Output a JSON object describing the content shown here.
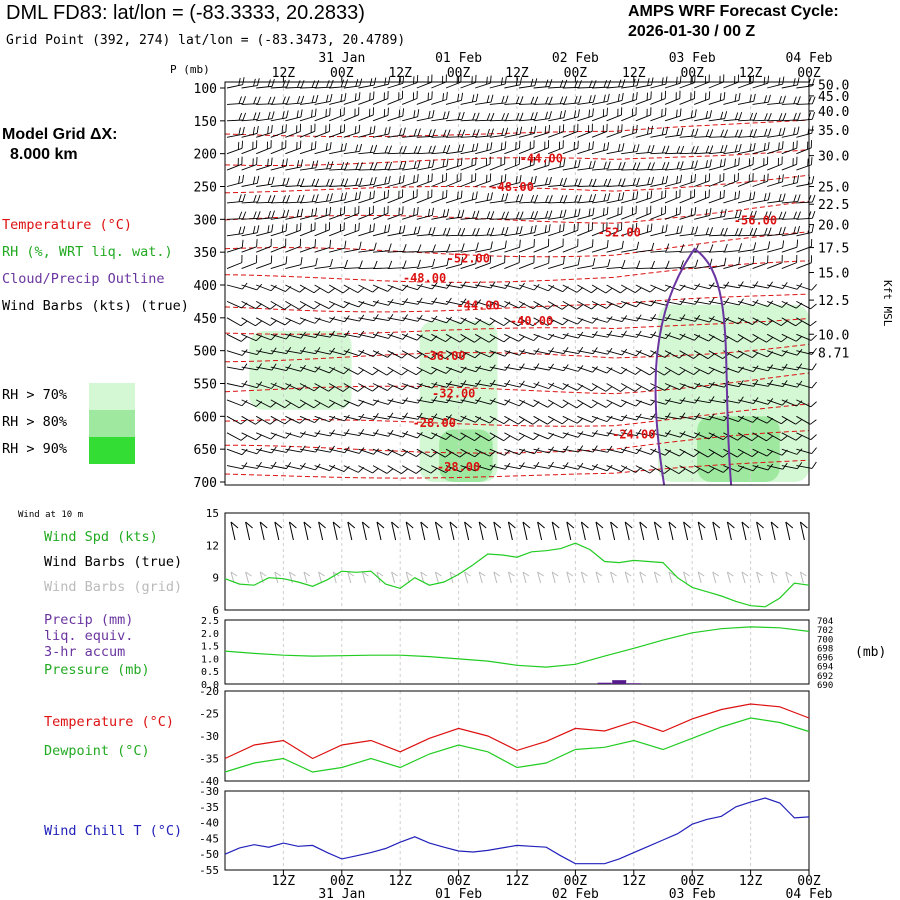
{
  "header": {
    "title": "DML FD83:  lat/lon = (-83.3333, 20.2833)",
    "grid_point": "Grid Point (392, 274) lat/lon = (-83.3473, 20.4789)",
    "cycle_label": "AMPS WRF Forecast Cycle:",
    "cycle_value": "2026-01-30 / 00  Z"
  },
  "side": {
    "grid_dx_label": "Model Grid ΔX:",
    "grid_dx_value": "8.000 km",
    "legend_temperature": "Temperature (°C)",
    "legend_rh": "RH (%, WRT liq. wat.)",
    "legend_cloud": "Cloud/Precip Outline",
    "legend_wind": "Wind Barbs (kts) (true)",
    "rh70": "RH > 70%",
    "rh80": "RH > 80%",
    "rh90": "RH > 90%",
    "wind10m": "Wind at 10 m",
    "wind_spd": "Wind Spd (kts)",
    "wind_barbs_true": "Wind Barbs (true)",
    "wind_barbs_grid": "Wind Barbs (grid)",
    "precip1": "Precip (mm)",
    "precip2": "liq. equiv.",
    "precip3": "3-hr accum",
    "pressure": "Pressure (mb)",
    "temperature": "Temperature (°C)",
    "dewpoint": "Dewpoint (°C)",
    "windchill": "Wind Chill T (°C)"
  },
  "colors": {
    "temperature": "#dd1111",
    "rh70": "#d4f7d4",
    "rh80": "#9fe89f",
    "rh90": "#33dd33",
    "cloud": "#6a35a0",
    "green_line": "#22cc22",
    "windchill": "#2222bb",
    "grid_barbs": "#bbbbbb",
    "precip": "#551a8b"
  },
  "chart_data": {
    "time_axis": {
      "top_ticks": [
        "12Z",
        "00Z",
        "12Z",
        "00Z",
        "12Z",
        "00Z",
        "12Z",
        "00Z",
        "12Z",
        "00Z"
      ],
      "top_dates": [
        {
          "tick": 1,
          "label": "31 Jan"
        },
        {
          "tick": 3,
          "label": "01 Feb"
        },
        {
          "tick": 5,
          "label": "02 Feb"
        },
        {
          "tick": 7,
          "label": "03 Feb"
        },
        {
          "tick": 9,
          "label": "04 Feb"
        }
      ],
      "bottom_ticks": [
        "12Z",
        "00Z",
        "12Z",
        "00Z",
        "12Z",
        "00Z",
        "12Z",
        "00Z",
        "12Z",
        "00Z"
      ],
      "bottom_dates": [
        {
          "tick": 1,
          "label": "31 Jan"
        },
        {
          "tick": 3,
          "label": "01 Feb"
        },
        {
          "tick": 5,
          "label": "02 Feb"
        },
        {
          "tick": 7,
          "label": "03 Feb"
        },
        {
          "tick": 9,
          "label": "04 Feb"
        }
      ],
      "forecast_hours": [
        0,
        120
      ]
    },
    "cross_section": {
      "type": "time-height",
      "ylabel": "P (mb)",
      "pressure_ticks": [
        100,
        150,
        200,
        250,
        300,
        350,
        400,
        450,
        500,
        550,
        600,
        650,
        700
      ],
      "ylim": [
        100,
        700
      ],
      "height_ticks": [
        {
          "label": "50.0",
          "p": 95
        },
        {
          "label": "45.0",
          "p": 112
        },
        {
          "label": "40.0",
          "p": 135
        },
        {
          "label": "35.0",
          "p": 164
        },
        {
          "label": "30.0",
          "p": 203
        },
        {
          "label": "25.0",
          "p": 250
        },
        {
          "label": "22.5",
          "p": 277
        },
        {
          "label": "20.0",
          "p": 308
        },
        {
          "label": "17.5",
          "p": 343
        },
        {
          "label": "15.0",
          "p": 381
        },
        {
          "label": "12.5",
          "p": 423
        },
        {
          "label": "10.0",
          "p": 475
        },
        {
          "label": "8.71",
          "p": 503
        }
      ],
      "height_axis_label": "Kft MSL",
      "temperature_labels": [
        {
          "text": "-44.00",
          "h": 65,
          "p": 207
        },
        {
          "text": "-48.00",
          "h": 59,
          "p": 251
        },
        {
          "text": "-52.00",
          "h": 81,
          "p": 320
        },
        {
          "text": "-56.00",
          "h": 109,
          "p": 302
        },
        {
          "text": "-52.00",
          "h": 50,
          "p": 360
        },
        {
          "text": "-48.00",
          "h": 41,
          "p": 389
        },
        {
          "text": "-44.00",
          "h": 52,
          "p": 431
        },
        {
          "text": "-40.00",
          "h": 63,
          "p": 455
        },
        {
          "text": "-36.00",
          "h": 45,
          "p": 508
        },
        {
          "text": "-32.00",
          "h": 47,
          "p": 565
        },
        {
          "text": "-28.00",
          "h": 43,
          "p": 610
        },
        {
          "text": "-24.00",
          "h": 84,
          "p": 628
        },
        {
          "text": "-28.00",
          "h": 48,
          "p": 677
        }
      ],
      "rh_regions": [
        {
          "level": "70",
          "h": [
            5,
            26
          ],
          "p": [
            470,
            590
          ]
        },
        {
          "level": "70",
          "h": [
            40,
            56
          ],
          "p": [
            455,
            700
          ]
        },
        {
          "level": "70",
          "h": [
            89,
            120
          ],
          "p": [
            430,
            700
          ]
        },
        {
          "level": "80",
          "h": [
            44,
            55
          ],
          "p": [
            620,
            700
          ]
        },
        {
          "level": "80",
          "h": [
            97,
            114
          ],
          "p": [
            600,
            700
          ]
        }
      ],
      "cloud_outline_h": [
        89,
        104
      ],
      "cloud_outline_top_p": 345
    },
    "wind_speed": {
      "type": "line",
      "title": "Wind Spd (kts)",
      "ylim": [
        6,
        15
      ],
      "yticks": [
        6,
        9,
        12,
        15
      ],
      "hours": [
        0,
        3,
        6,
        9,
        12,
        15,
        18,
        21,
        24,
        27,
        30,
        33,
        36,
        39,
        42,
        45,
        48,
        51,
        54,
        57,
        60,
        63,
        66,
        69,
        72,
        75,
        78,
        81,
        84,
        87,
        90,
        93,
        96,
        99,
        102,
        105,
        108,
        111,
        114,
        117,
        120
      ],
      "values": [
        8.9,
        8.4,
        8.3,
        9.0,
        8.9,
        8.6,
        8.2,
        8.8,
        9.6,
        9.5,
        9.6,
        8.4,
        8.0,
        9.0,
        8.3,
        8.6,
        9.3,
        10.2,
        11.2,
        11.1,
        10.9,
        11.4,
        11.5,
        11.7,
        12.2,
        11.6,
        10.5,
        10.4,
        10.6,
        10.5,
        10.4,
        9.0,
        8.1,
        7.7,
        7.3,
        6.8,
        6.4,
        6.3,
        7.1,
        8.5,
        8.3
      ]
    },
    "precip_pressure": {
      "precip_ylim": [
        0.0,
        2.5
      ],
      "precip_ticks": [
        "0.0",
        "0.5",
        "1.0",
        "1.5",
        "2.0",
        "2.5"
      ],
      "pressure_ylim": [
        690,
        704
      ],
      "pressure_ticks": [
        "690",
        "692",
        "694",
        "696",
        "698",
        "700",
        "702",
        "704"
      ],
      "pressure_unit": "(mb)",
      "hours": [
        0,
        6,
        12,
        18,
        24,
        30,
        36,
        42,
        48,
        54,
        60,
        66,
        72,
        78,
        84,
        90,
        96,
        102,
        108,
        114,
        120
      ],
      "pressure": [
        697.2,
        696.7,
        696.3,
        696.1,
        696.2,
        696.3,
        696.3,
        696.0,
        695.5,
        695.0,
        694.1,
        693.7,
        694.3,
        696.1,
        697.8,
        699.6,
        701.2,
        702.1,
        702.5,
        702.3,
        701.5
      ],
      "precip_hours": [
        78,
        81,
        84
      ],
      "precip_values": [
        0.05,
        0.15,
        0.03
      ]
    },
    "temp_dew": {
      "ylim": [
        -40,
        -20
      ],
      "yticks": [
        "-20",
        "-25",
        "-30",
        "-35",
        "-40"
      ],
      "hours": [
        0,
        6,
        12,
        18,
        24,
        30,
        36,
        42,
        48,
        54,
        60,
        66,
        72,
        78,
        84,
        90,
        96,
        102,
        108,
        114,
        120
      ],
      "temperature": [
        -35,
        -32,
        -31,
        -35,
        -32,
        -31,
        -33.5,
        -30.5,
        -28.3,
        -30,
        -33.2,
        -31.2,
        -28.3,
        -28.9,
        -26.8,
        -29,
        -26.2,
        -24.1,
        -22.9,
        -23.5,
        -26
      ],
      "dewpoint": [
        -38,
        -36,
        -35,
        -38,
        -37,
        -35,
        -37,
        -34,
        -32,
        -33.5,
        -37,
        -36,
        -33,
        -32.5,
        -31,
        -33,
        -30.5,
        -28,
        -26,
        -27,
        -29
      ]
    },
    "wind_chill": {
      "ylim": [
        -55,
        -30
      ],
      "yticks": [
        "-30",
        "-35",
        "-40",
        "-45",
        "-50",
        "-55"
      ],
      "hours": [
        0,
        3,
        6,
        9,
        12,
        15,
        18,
        21,
        24,
        27,
        30,
        33,
        36,
        39,
        42,
        45,
        48,
        51,
        54,
        57,
        60,
        63,
        66,
        69,
        72,
        75,
        78,
        81,
        84,
        87,
        90,
        93,
        96,
        99,
        102,
        105,
        108,
        111,
        114,
        117,
        120
      ],
      "values": [
        -50,
        -48,
        -47,
        -47.8,
        -46.5,
        -47.5,
        -47.2,
        -49.5,
        -51.5,
        -50.5,
        -49.5,
        -48.2,
        -46.2,
        -44.5,
        -46.5,
        -47.8,
        -49,
        -49.3,
        -48.8,
        -48,
        -47.2,
        -47.5,
        -47.8,
        -50.5,
        -53,
        -53,
        -53,
        -51.5,
        -49.5,
        -47.5,
        -45.5,
        -43.5,
        -40.5,
        -39,
        -38,
        -35,
        -33.5,
        -32.2,
        -33.8,
        -38.5,
        -38.2
      ]
    }
  }
}
